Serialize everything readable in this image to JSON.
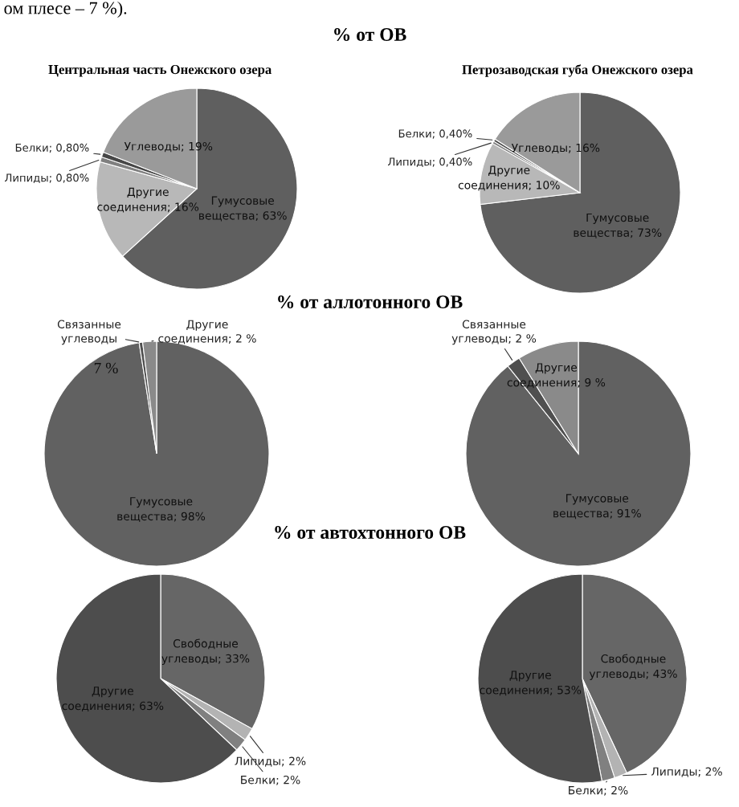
{
  "chart_data": [
    {
      "type": "pie",
      "title": "% от ОВ",
      "subtitle": "Центральная часть Онежского озера",
      "annotations": [
        "ом плесе – 7 %)."
      ],
      "categories": [
        "Гумусовые вещества",
        "Другие соединения",
        "Липиды",
        "Белки",
        "Углеводы"
      ],
      "values": [
        63,
        16,
        0.8,
        0.8,
        19
      ],
      "value_labels": [
        "63%",
        "16%",
        "0,80%",
        "0,80%",
        "19%"
      ],
      "colors": [
        "#5f5f5f",
        "#b8b8b8",
        "#7f7f7f",
        "#474747",
        "#9a9a9a"
      ]
    },
    {
      "type": "pie",
      "subtitle": "Петрозаводская губа Онежского озера",
      "categories": [
        "Гумусовые вещества",
        "Другие соединения",
        "Липиды",
        "Белки",
        "Углеводы"
      ],
      "values": [
        73,
        10,
        0.4,
        0.4,
        16
      ],
      "value_labels": [
        "73%",
        "10%",
        "0,40%",
        "0,40%",
        "16%"
      ],
      "colors": [
        "#5f5f5f",
        "#b8b8b8",
        "#7f7f7f",
        "#474747",
        "#9a9a9a"
      ]
    },
    {
      "type": "pie",
      "title": "% от аллотонного ОВ",
      "annotations": [
        "7 %"
      ],
      "categories": [
        "Гумусовые вещества",
        "Связанные углеводы",
        "Другие соединения"
      ],
      "values": [
        98,
        0.5,
        2
      ],
      "value_labels": [
        "98%",
        null,
        "2 %"
      ],
      "colors": [
        "#616161",
        "#4f4f4f",
        "#8a8a8a"
      ]
    },
    {
      "type": "pie",
      "categories": [
        "Гумусовые вещества",
        "Связанные углеводы",
        "Другие соединения"
      ],
      "values": [
        91,
        2,
        9
      ],
      "value_labels": [
        "91%",
        "2 %",
        "9 %"
      ],
      "colors": [
        "#616161",
        "#4f4f4f",
        "#8a8a8a"
      ]
    },
    {
      "type": "pie",
      "title": "% от автохтонного ОВ",
      "categories": [
        "Свободные углеводы",
        "Липиды",
        "Белки",
        "Другие соединения"
      ],
      "values": [
        33,
        2,
        2,
        63
      ],
      "value_labels": [
        "33%",
        "2%",
        "2%",
        "63%"
      ],
      "colors": [
        "#666666",
        "#b3b3b3",
        "#808080",
        "#4d4d4d"
      ]
    },
    {
      "type": "pie",
      "categories": [
        "Свободные углеводы",
        "Липиды",
        "Белки",
        "Другие соединения"
      ],
      "values": [
        43,
        2,
        2,
        53
      ],
      "value_labels": [
        "43%",
        "2%",
        "2%",
        "53%"
      ],
      "colors": [
        "#666666",
        "#b3b3b3",
        "#808080",
        "#4d4d4d"
      ]
    }
  ]
}
